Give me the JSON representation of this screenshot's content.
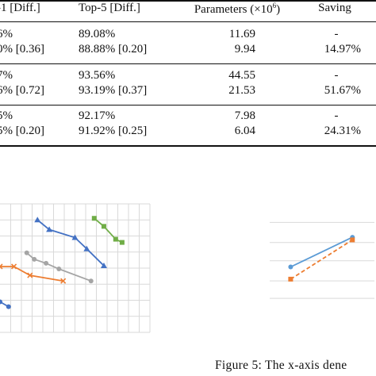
{
  "table": {
    "headers": {
      "top1": "-1 [Diff.]",
      "top5": "Top-5 [Diff.]",
      "params_prefix": "Parameters (×10",
      "params_exp": "6",
      "params_suffix": ")",
      "saving": "Saving"
    },
    "groups": [
      {
        "rows": [
          {
            "top1": "6%",
            "top5": "89.08%",
            "params": "11.69",
            "saving": "-"
          },
          {
            "top1": "0% [0.36]",
            "top5": "88.88% [0.20]",
            "params": "9.94",
            "saving": "14.97%"
          }
        ]
      },
      {
        "rows": [
          {
            "top1": "7%",
            "top5": "93.56%",
            "params": "44.55",
            "saving": "-"
          },
          {
            "top1": "6% [0.72]",
            "top5": "93.19% [0.37]",
            "params": "21.53",
            "saving": "51.67%"
          }
        ]
      },
      {
        "rows": [
          {
            "top1": "5%",
            "top5": "92.17%",
            "params": "7.98",
            "saving": "-"
          },
          {
            "top1": "5% [0.20]",
            "top5": "91.92% [0.25]",
            "params": "6.04",
            "saving": "24.31%"
          }
        ]
      }
    ]
  },
  "chart_data": [
    {
      "type": "line",
      "xlim": [
        0,
        14
      ],
      "ylim": [
        0,
        8
      ],
      "grid": true,
      "series": [
        {
          "color": "#4472c4",
          "marker": "circle",
          "points": [
            [
              0,
              1.9
            ],
            [
              0.8,
              1.6
            ]
          ]
        },
        {
          "color": "#ed7d31",
          "marker": "x",
          "points": [
            [
              0,
              4.1
            ],
            [
              1.3,
              4.1
            ],
            [
              2.8,
              3.55
            ],
            [
              5.9,
              3.2
            ]
          ]
        },
        {
          "color": "#a5a5a5",
          "marker": "circle",
          "points": [
            [
              2.5,
              4.95
            ],
            [
              3.2,
              4.55
            ],
            [
              4.3,
              4.3
            ],
            [
              5.5,
              3.95
            ],
            [
              8.5,
              3.2
            ]
          ]
        },
        {
          "color": "#4472c4",
          "marker": "triangle",
          "points": [
            [
              3.5,
              7.0
            ],
            [
              4.6,
              6.4
            ],
            [
              7.0,
              5.9
            ],
            [
              8.1,
              5.2
            ],
            [
              9.7,
              4.15
            ]
          ]
        },
        {
          "color": "#70ad47",
          "marker": "square",
          "points": [
            [
              8.8,
              7.1
            ],
            [
              9.7,
              6.6
            ],
            [
              10.8,
              5.8
            ],
            [
              11.4,
              5.6
            ]
          ]
        }
      ]
    },
    {
      "type": "line",
      "xlim": [
        0,
        10
      ],
      "ylim": [
        0,
        6
      ],
      "grid": true,
      "series": [
        {
          "color": "#5b9bd5",
          "marker": "circle",
          "dash": false,
          "points": [
            [
              2.0,
              2.25
            ],
            [
              7.9,
              3.95
            ]
          ]
        },
        {
          "color": "#ed7d31",
          "marker": "square",
          "dash": true,
          "points": [
            [
              2.0,
              1.55
            ],
            [
              7.9,
              3.8
            ]
          ]
        }
      ]
    }
  ],
  "caption": "Figure 5: The x-axis dene"
}
